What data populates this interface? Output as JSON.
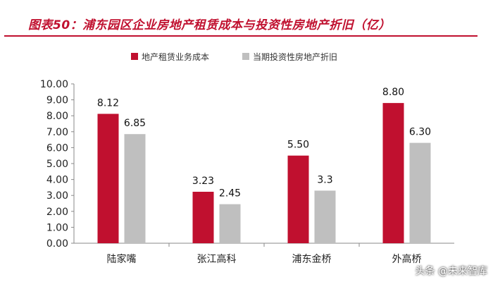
{
  "header": {
    "title": "图表50：浦东园区企业房地产租赁成本与投资性房地产折旧（亿）"
  },
  "colors": {
    "accent": "#c0102f",
    "series1": "#c0102f",
    "series2": "#bfbfbf"
  },
  "chart_data": {
    "type": "bar",
    "categories": [
      "陆家嘴",
      "张江高科",
      "浦东金桥",
      "外高桥"
    ],
    "series": [
      {
        "name": "地产租赁业务成本",
        "values": [
          8.12,
          3.23,
          5.5,
          8.8
        ],
        "labels": [
          "8.12",
          "3.23",
          "5.50",
          "8.80"
        ]
      },
      {
        "name": "当期投资性房地产折旧",
        "values": [
          6.85,
          2.45,
          3.3,
          6.3
        ],
        "labels": [
          "6.85",
          "2.45",
          "3.3",
          "6.30"
        ]
      }
    ],
    "ylim": [
      0,
      10
    ],
    "yticks": [
      "0.00",
      "1.00",
      "2.00",
      "3.00",
      "4.00",
      "5.00",
      "6.00",
      "7.00",
      "8.00",
      "9.00",
      "10.00"
    ],
    "grid": false,
    "legend": "top-left"
  },
  "watermark": {
    "text": "头条 @未来智库"
  }
}
